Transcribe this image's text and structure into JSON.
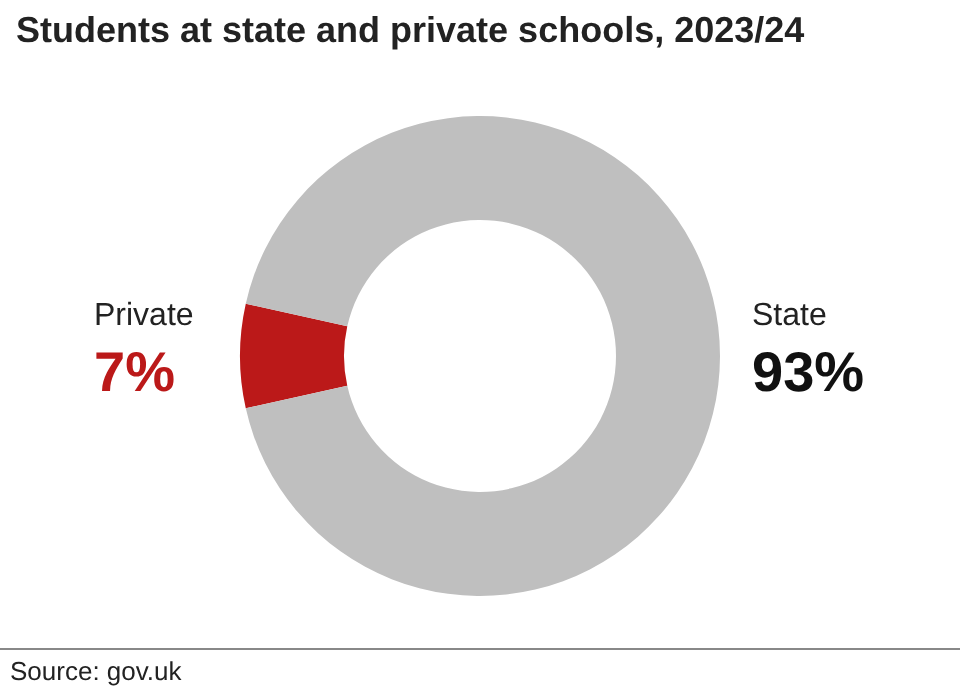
{
  "chart_data": {
    "type": "donut",
    "title": "Students at state and private schools, 2023/24",
    "categories": [
      "Private",
      "State"
    ],
    "values": [
      7,
      93
    ],
    "colors": [
      "#bb1919",
      "#bfbfbf"
    ],
    "value_labels": [
      "7%",
      "93%"
    ],
    "annotations": [
      "Source: gov.uk"
    ],
    "legend": false
  }
}
